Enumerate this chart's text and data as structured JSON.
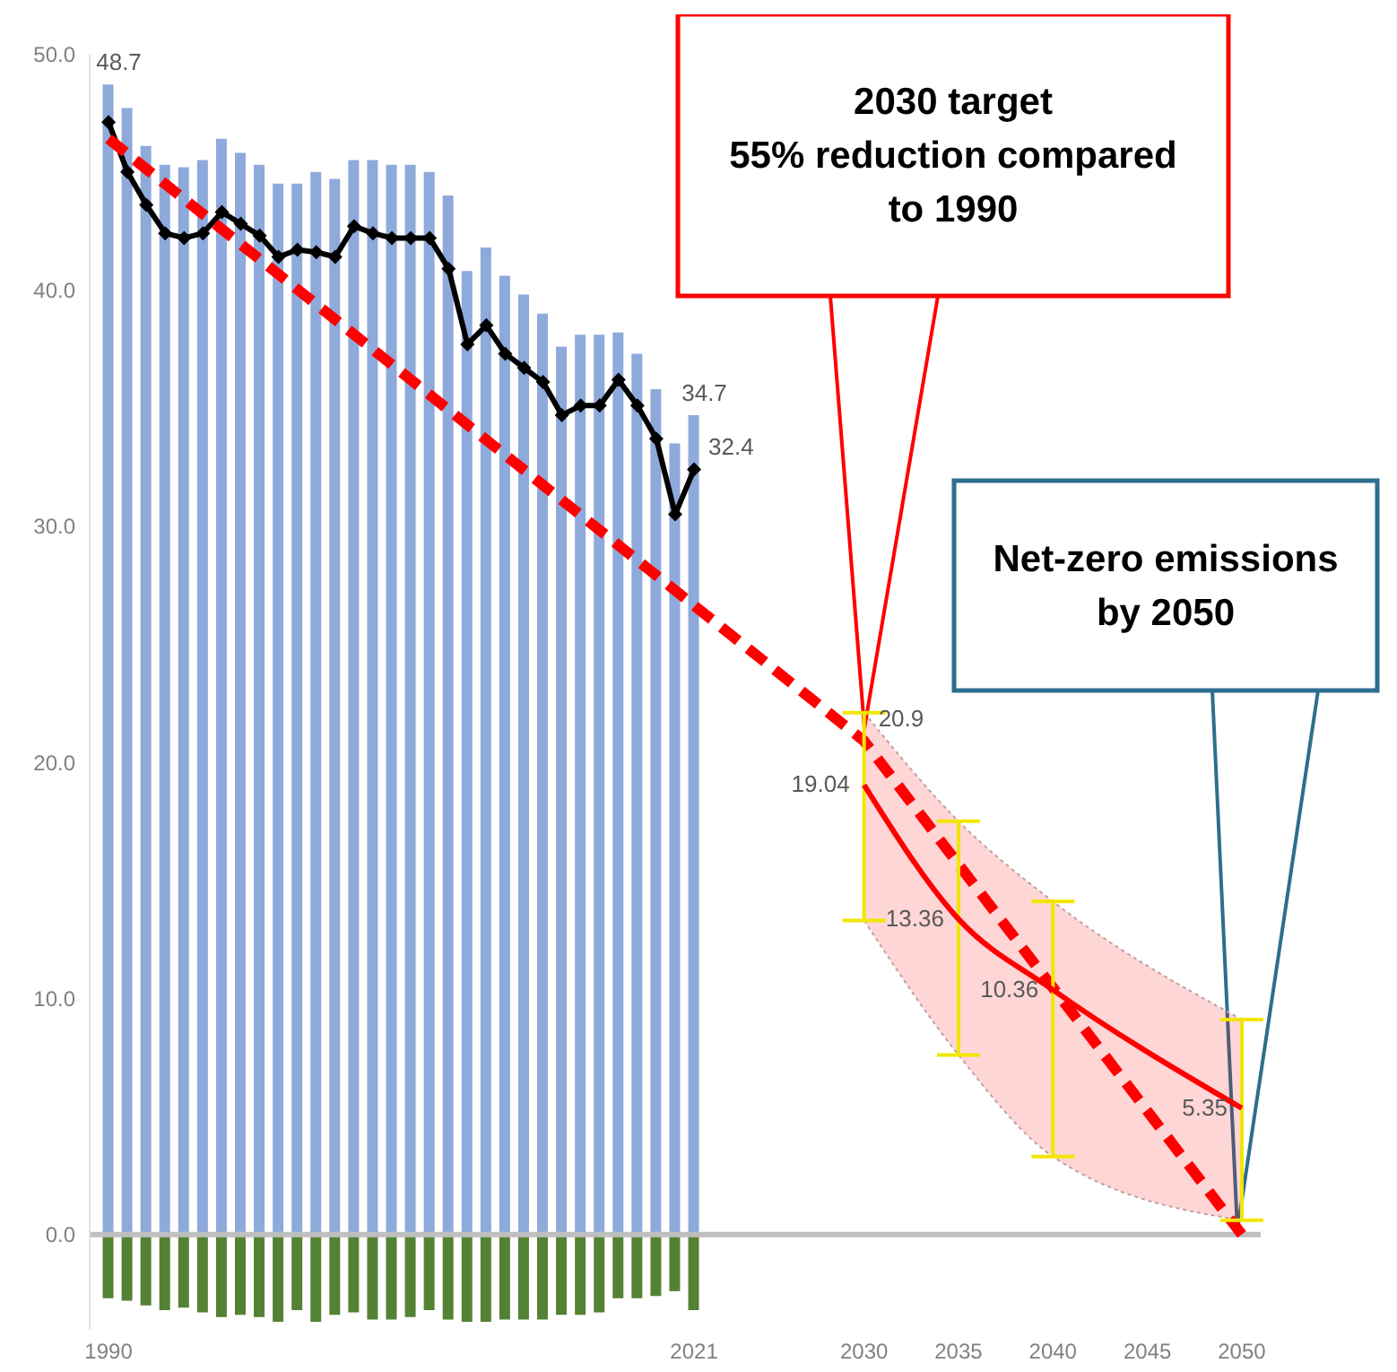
{
  "chart_data": {
    "type": "bar",
    "stacked": true,
    "x": [
      1990,
      1991,
      1992,
      1993,
      1994,
      1995,
      1996,
      1997,
      1998,
      1999,
      2000,
      2001,
      2002,
      2003,
      2004,
      2005,
      2006,
      2007,
      2008,
      2009,
      2010,
      2011,
      2012,
      2013,
      2014,
      2015,
      2016,
      2017,
      2018,
      2019,
      2020,
      2021
    ],
    "xlim": [
      1989,
      2051
    ],
    "xticks": [
      1990,
      2021,
      2030,
      2035,
      2040,
      2045,
      2050
    ],
    "ylim": [
      -4,
      50
    ],
    "yticks": [
      {
        "value": 0,
        "label": "0.0"
      },
      {
        "value": 10,
        "label": "10.0"
      },
      {
        "value": 20,
        "label": "20.0"
      },
      {
        "value": 30,
        "label": "30.0"
      },
      {
        "value": 40,
        "label": "40.0"
      },
      {
        "value": 50,
        "label": "50.0"
      }
    ],
    "series": [
      {
        "color": "#8eaadb",
        "values": [
          48.7,
          47.7,
          46.1,
          45.3,
          45.2,
          45.5,
          46.4,
          45.8,
          45.3,
          44.5,
          44.5,
          45.0,
          44.7,
          45.5,
          45.5,
          45.3,
          45.3,
          45.0,
          44.0,
          40.8,
          41.8,
          40.6,
          39.8,
          39.0,
          37.6,
          38.1,
          38.1,
          38.2,
          37.3,
          35.8,
          33.5,
          34.7
        ],
        "value_labels": [
          "48.7",
          null,
          null,
          null,
          null,
          null,
          null,
          null,
          null,
          null,
          null,
          null,
          null,
          null,
          null,
          null,
          null,
          null,
          null,
          null,
          null,
          null,
          null,
          null,
          null,
          null,
          null,
          null,
          null,
          null,
          null,
          "34.7"
        ]
      },
      {
        "color": "#548235",
        "values": [
          -2.7,
          -2.8,
          -3.0,
          -3.2,
          -3.1,
          -3.3,
          -3.5,
          -3.4,
          -3.5,
          -3.7,
          -3.2,
          -3.7,
          -3.4,
          -3.3,
          -3.6,
          -3.6,
          -3.5,
          -3.2,
          -3.6,
          -3.7,
          -3.7,
          -3.6,
          -3.6,
          -3.6,
          -3.4,
          -3.4,
          -3.3,
          -2.7,
          -2.7,
          -2.6,
          -2.4,
          -3.2
        ]
      },
      {
        "type": "line",
        "color": "#000000",
        "marker": "diamond",
        "values": [
          47.1,
          45.0,
          43.6,
          42.4,
          42.2,
          42.4,
          43.3,
          42.8,
          42.3,
          41.4,
          41.7,
          41.6,
          41.4,
          42.7,
          42.4,
          42.2,
          42.2,
          42.2,
          40.9,
          37.7,
          38.5,
          37.3,
          36.7,
          36.1,
          34.7,
          35.1,
          35.1,
          36.2,
          35.1,
          33.7,
          30.5,
          32.4
        ],
        "value_labels": [
          null,
          null,
          null,
          null,
          null,
          null,
          null,
          null,
          null,
          null,
          null,
          null,
          null,
          null,
          null,
          null,
          null,
          null,
          null,
          null,
          null,
          null,
          null,
          null,
          null,
          null,
          null,
          null,
          null,
          null,
          null,
          "32.4"
        ]
      },
      {
        "type": "line",
        "color": "#ff0000",
        "line_style": "dashed",
        "x": [
          1990,
          2030,
          2050
        ],
        "values": [
          46.4,
          20.9,
          0
        ],
        "value_labels": [
          null,
          "20.9",
          null
        ]
      },
      {
        "type": "line",
        "color": "#ff0000",
        "x": [
          2030,
          2035,
          2040,
          2050
        ],
        "values": [
          19.04,
          13.36,
          10.36,
          5.35
        ],
        "value_labels": [
          "19.04",
          "13.36",
          "10.36",
          "5.35"
        ],
        "errors": [
          [
            13.3,
            22.1
          ],
          [
            7.6,
            17.5
          ],
          [
            3.3,
            14.1
          ],
          [
            0.6,
            9.1
          ]
        ],
        "lower": [
          13.3,
          7.6,
          3.3,
          0.6
        ],
        "upper": [
          22.1,
          17.5,
          14.1,
          9.1
        ]
      }
    ],
    "ref_lines": [
      {
        "axis": "y",
        "value": 0,
        "color": "#bfbfbf"
      }
    ],
    "annotations": [
      "2030 target\n55% reduction compared\nto 1990",
      "Net-zero emissions\nby 2050"
    ]
  }
}
